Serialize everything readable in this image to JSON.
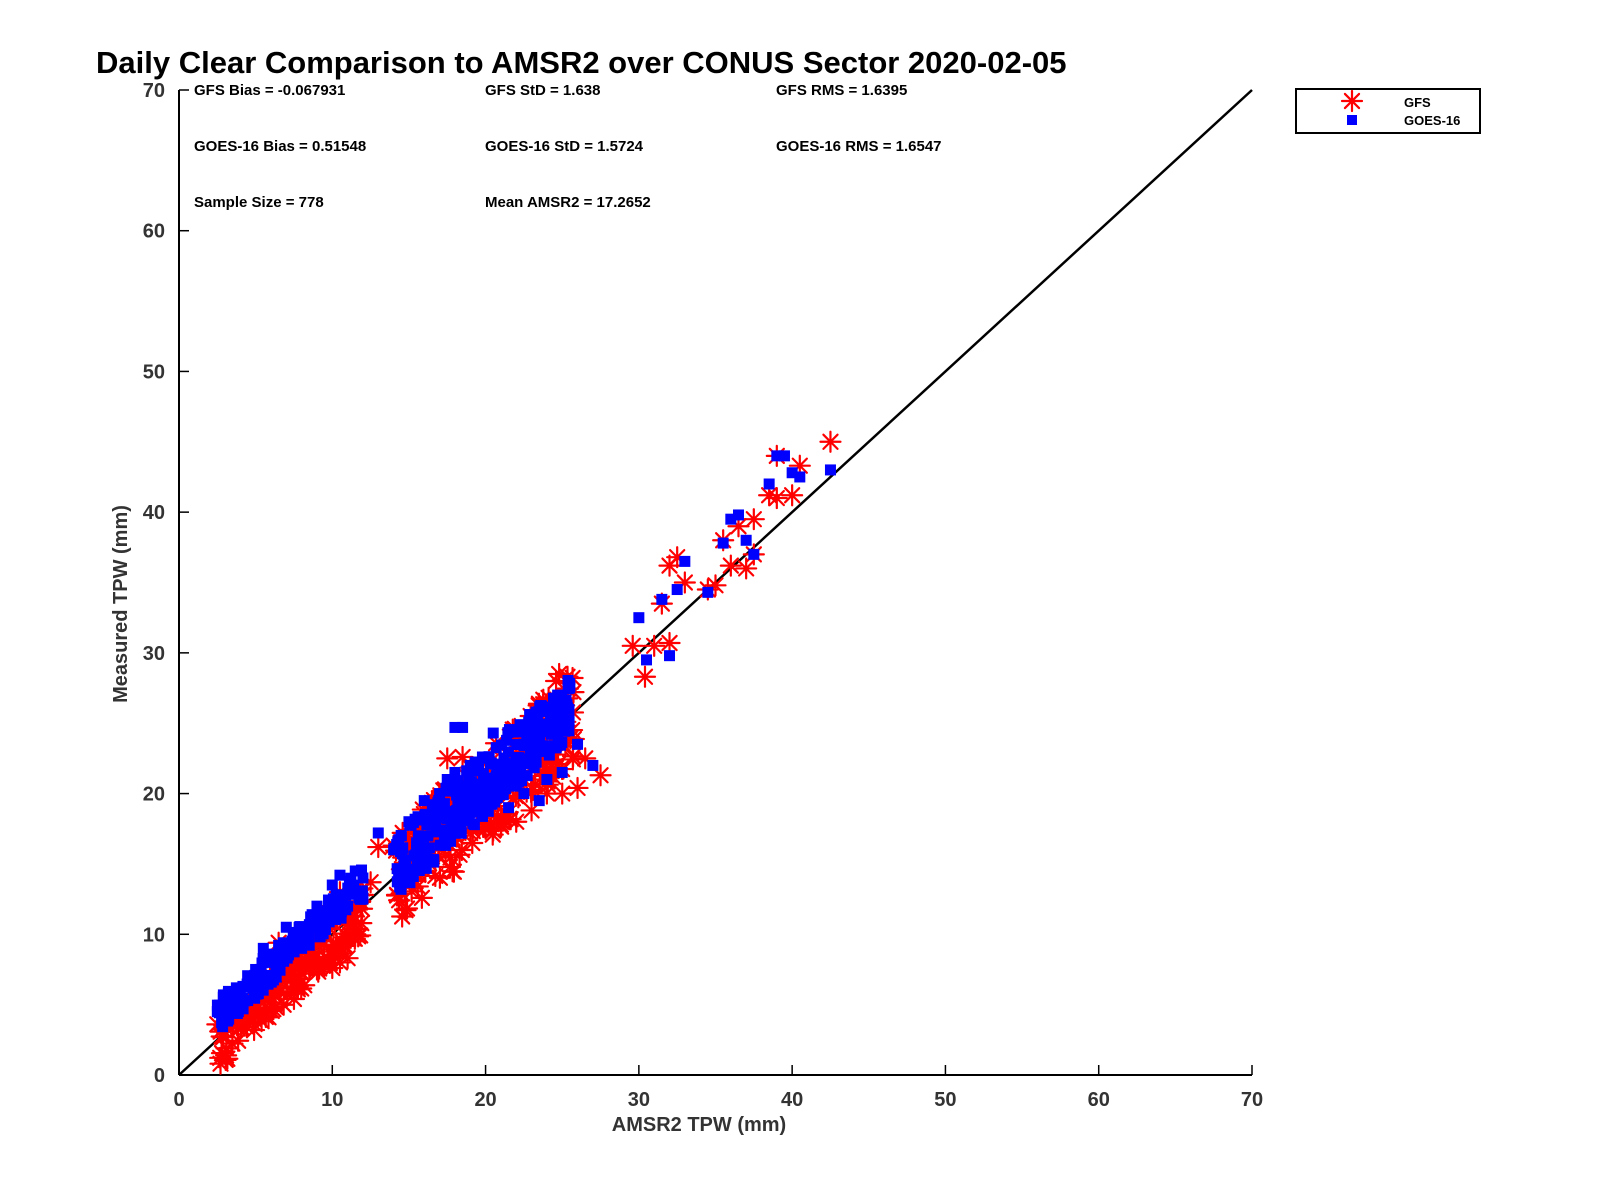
{
  "chart_data": {
    "type": "scatter",
    "title": "Daily Clear Comparison to AMSR2 over CONUS Sector 2020-02-05",
    "xlabel": "AMSR2 TPW (mm)",
    "ylabel": "Measured TPW (mm)",
    "xlim": [
      0,
      70
    ],
    "ylim": [
      0,
      70
    ],
    "xticks": [
      "0",
      "10",
      "20",
      "30",
      "40",
      "50",
      "60",
      "70"
    ],
    "yticks": [
      "0",
      "10",
      "20",
      "30",
      "40",
      "50",
      "60",
      "70"
    ],
    "legend_position": "top-right outside",
    "grid": false,
    "reference_line": {
      "x": [
        0,
        70
      ],
      "y": [
        0,
        70
      ],
      "color": "#000000"
    },
    "stats": [
      [
        "GFS Bias = -0.067931",
        "GFS StD = 1.638",
        "GFS RMS = 1.6395"
      ],
      [
        "GOES-16 Bias = 0.51548",
        "GOES-16 StD = 1.5724",
        "GOES-16 RMS = 1.6547"
      ],
      [
        "Sample Size = 778",
        "Mean AMSR2 = 17.2652"
      ]
    ],
    "series": [
      {
        "name": "GFS",
        "marker": "asterisk",
        "color": "#ff0000",
        "points": [
          [
            2.5,
            3.6
          ],
          [
            3.0,
            3.8
          ],
          [
            3.5,
            3.7
          ],
          [
            4.0,
            4.6
          ],
          [
            3.5,
            5.5
          ],
          [
            4.5,
            5.0
          ],
          [
            5.0,
            5.2
          ],
          [
            5.5,
            5.5
          ],
          [
            6.0,
            5.6
          ],
          [
            6.5,
            6.2
          ],
          [
            7.5,
            5.4
          ],
          [
            7.0,
            6.8
          ],
          [
            8.0,
            7.2
          ],
          [
            8.5,
            7.7
          ],
          [
            9.0,
            7.5
          ],
          [
            9.5,
            7.8
          ],
          [
            10.0,
            7.6
          ],
          [
            10.5,
            8.0
          ],
          [
            11.0,
            8.3
          ],
          [
            11.5,
            10.0
          ],
          [
            11.0,
            9.8
          ],
          [
            6.5,
            9.4
          ],
          [
            7.5,
            8.0
          ],
          [
            10.0,
            12.0
          ],
          [
            10.5,
            13.0
          ],
          [
            11.5,
            13.2
          ],
          [
            12.5,
            13.7
          ],
          [
            12.0,
            12.8
          ],
          [
            13.0,
            16.2
          ],
          [
            14.0,
            16.3
          ],
          [
            15.0,
            16.0
          ],
          [
            16.0,
            16.0
          ],
          [
            17.0,
            16.2
          ],
          [
            18.0,
            17.0
          ],
          [
            19.0,
            17.2
          ],
          [
            20.0,
            17.5
          ],
          [
            21.0,
            17.8
          ],
          [
            22.0,
            18.0
          ],
          [
            23.0,
            18.8
          ],
          [
            24.0,
            20.0
          ],
          [
            25.0,
            20.0
          ],
          [
            26.0,
            20.4
          ],
          [
            27.5,
            21.3
          ],
          [
            26.5,
            22.5
          ],
          [
            17.5,
            22.5
          ],
          [
            18.5,
            22.6
          ],
          [
            19.5,
            21.0
          ],
          [
            20.5,
            20.5
          ],
          [
            22.5,
            21.0
          ],
          [
            16.5,
            19.0
          ],
          [
            24.8,
            28.5
          ],
          [
            24.6,
            28.0
          ],
          [
            29.6,
            30.5
          ],
          [
            30.4,
            28.3
          ],
          [
            31.0,
            30.5
          ],
          [
            32.0,
            30.7
          ],
          [
            31.5,
            33.5
          ],
          [
            32.0,
            36.2
          ],
          [
            32.5,
            36.8
          ],
          [
            33.0,
            35.0
          ],
          [
            34.5,
            34.5
          ],
          [
            35.0,
            34.8
          ],
          [
            35.5,
            38.0
          ],
          [
            36.0,
            36.2
          ],
          [
            37.0,
            36.0
          ],
          [
            37.5,
            37.0
          ],
          [
            37.5,
            39.5
          ],
          [
            36.5,
            39.0
          ],
          [
            38.5,
            41.2
          ],
          [
            39.0,
            41.0
          ],
          [
            39.0,
            44.0
          ],
          [
            40.0,
            41.2
          ],
          [
            40.5,
            43.3
          ],
          [
            42.5,
            45.0
          ]
        ]
      },
      {
        "name": "GOES-16",
        "marker": "square",
        "color": "#0000ff",
        "points": [
          [
            2.5,
            4.5
          ],
          [
            3.5,
            5.2
          ],
          [
            4.0,
            6.0
          ],
          [
            5.0,
            7.0
          ],
          [
            5.5,
            9.0
          ],
          [
            6.0,
            8.0
          ],
          [
            7.0,
            10.5
          ],
          [
            8.0,
            9.0
          ],
          [
            8.5,
            10.0
          ],
          [
            9.0,
            12.0
          ],
          [
            9.5,
            11.5
          ],
          [
            10.0,
            13.5
          ],
          [
            10.5,
            14.2
          ],
          [
            11.0,
            12.0
          ],
          [
            12.0,
            12.5
          ],
          [
            11.5,
            14.5
          ],
          [
            13.0,
            17.2
          ],
          [
            14.0,
            16.0
          ],
          [
            14.5,
            17.0
          ],
          [
            15.0,
            18.0
          ],
          [
            16.0,
            19.5
          ],
          [
            17.0,
            20.0
          ],
          [
            17.5,
            21.0
          ],
          [
            18.0,
            21.5
          ],
          [
            18.0,
            24.7
          ],
          [
            18.5,
            24.7
          ],
          [
            20.5,
            24.3
          ],
          [
            19.0,
            22.0
          ],
          [
            20.0,
            22.5
          ],
          [
            21.0,
            22.0
          ],
          [
            22.0,
            22.5
          ],
          [
            23.0,
            23.0
          ],
          [
            24.0,
            21.0
          ],
          [
            25.0,
            21.5
          ],
          [
            26.0,
            23.5
          ],
          [
            27.0,
            22.0
          ],
          [
            21.5,
            19.0
          ],
          [
            22.5,
            20.0
          ],
          [
            23.5,
            19.5
          ],
          [
            24.7,
            27.0
          ],
          [
            30.0,
            32.5
          ],
          [
            30.5,
            29.5
          ],
          [
            31.5,
            33.8
          ],
          [
            32.0,
            29.8
          ],
          [
            32.5,
            34.5
          ],
          [
            33.0,
            36.5
          ],
          [
            34.5,
            34.3
          ],
          [
            35.5,
            37.8
          ],
          [
            36.0,
            39.5
          ],
          [
            36.5,
            39.8
          ],
          [
            37.0,
            38.0
          ],
          [
            37.5,
            37.0
          ],
          [
            38.5,
            42.0
          ],
          [
            39.0,
            44.0
          ],
          [
            39.5,
            44.0
          ],
          [
            40.0,
            42.8
          ],
          [
            40.5,
            42.5
          ],
          [
            42.5,
            43.0
          ],
          [
            5.0,
            7.5
          ],
          [
            6.5,
            8.5
          ],
          [
            7.5,
            9.5
          ],
          [
            9.0,
            10.5
          ],
          [
            12.0,
            14.0
          ],
          [
            15.5,
            16.5
          ],
          [
            16.5,
            18.5
          ],
          [
            19.5,
            20.0
          ],
          [
            21.0,
            20.5
          ]
        ]
      }
    ],
    "clouds": [
      {
        "series": "GFS",
        "count": 140,
        "seed": 11,
        "xmin": 2.5,
        "xmax": 12.0,
        "off_min": -2.0,
        "off_max": 1.5
      },
      {
        "series": "GOES-16",
        "count": 150,
        "seed": 23,
        "xmin": 2.5,
        "xmax": 12.0,
        "off_min": 0.5,
        "off_max": 2.8
      },
      {
        "series": "GFS",
        "count": 230,
        "seed": 37,
        "xmin": 14.0,
        "xmax": 26.0,
        "off_min": -3.5,
        "off_max": 3.0
      },
      {
        "series": "GOES-16",
        "count": 330,
        "seed": 51,
        "xmin": 14.0,
        "xmax": 25.5,
        "off_min": -1.5,
        "off_max": 3.0
      }
    ]
  }
}
